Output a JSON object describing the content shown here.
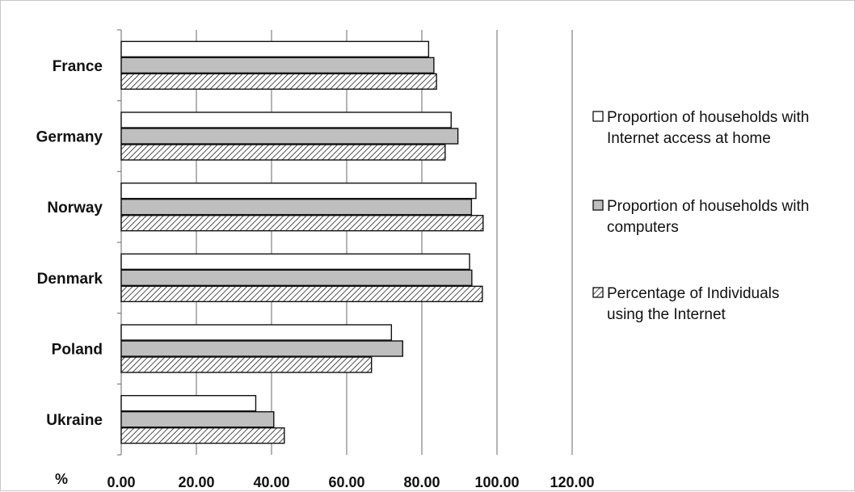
{
  "chart_data": {
    "type": "bar",
    "orientation": "horizontal",
    "categories": [
      "France",
      "Germany",
      "Norway",
      "Denmark",
      "Poland",
      "Ukraine"
    ],
    "series": [
      {
        "name": "Proportion of households with Internet access at home",
        "values": [
          81.8,
          87.8,
          94.4,
          92.7,
          71.9,
          35.8
        ],
        "fill": "#ffffff",
        "pattern": "none"
      },
      {
        "name": "Proportion of households with computers",
        "values": [
          83.2,
          89.6,
          93.2,
          93.3,
          74.9,
          40.6
        ],
        "fill": "#bfbfbf",
        "pattern": "none"
      },
      {
        "name": "Percentage of Individuals using the Internet",
        "values": [
          83.9,
          86.2,
          96.3,
          96.1,
          66.6,
          43.4
        ],
        "fill": "#ffffff",
        "pattern": "diagonal-hatch"
      }
    ],
    "xlim": [
      0,
      120
    ],
    "xticks": [
      "0.00",
      "20.00",
      "40.00",
      "60.00",
      "80.00",
      "100.00",
      "120.00"
    ],
    "xlabel": "%",
    "ylabel": "",
    "title": "",
    "grid": "vertical",
    "legend_position": "right"
  }
}
